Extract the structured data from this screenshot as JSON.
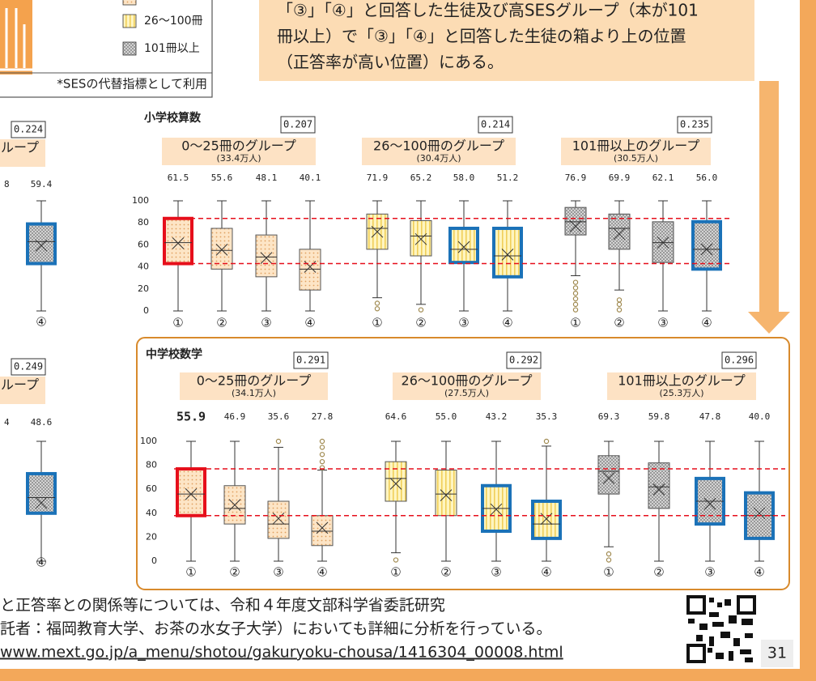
{
  "legend": {
    "items": [
      "26〜100冊",
      "101冊以上"
    ],
    "note": "*SESの代替指標として利用"
  },
  "callout": [
    "「③」「④」と回答した生徒及び高SESグループ（本が101",
    "冊以上）で「③」「④」と回答した生徒の箱より上の位置",
    "（正答率が高い位置）にある。"
  ],
  "left_fragments": [
    {
      "coef": "0.224",
      "title": "ループ",
      "labels": [
        "8",
        "59.4"
      ],
      "box": {
        "label": "④",
        "min": 0,
        "q1": 43,
        "median": 63,
        "q3": 79,
        "max": 100,
        "mean": 59.4,
        "border": "#1b72b8"
      }
    },
    {
      "coef": "0.249",
      "title": "ループ",
      "labels": [
        "4",
        "48.6"
      ],
      "box": {
        "label": "④",
        "min": 0,
        "q1": 40,
        "median": 53,
        "q3": 73,
        "max": 100,
        "mean": 48.6,
        "border": "#1b72b8"
      }
    }
  ],
  "charts": [
    {
      "title": "小学校算数",
      "ylim": [
        0,
        100
      ],
      "yticks": [
        0,
        20,
        40,
        60,
        80,
        100
      ],
      "reference_lines": [
        84,
        43
      ],
      "groups": [
        {
          "title": "0〜25冊のグループ",
          "count": "(33.4万人)",
          "coef": "0.207",
          "values": [
            61.5,
            55.6,
            48.1,
            40.1
          ],
          "value_labels": [
            "61.5",
            "55.6",
            "48.1",
            "40.1"
          ],
          "boxes": [
            {
              "label": "①",
              "min": 0,
              "q1": 43,
              "median": 62,
              "q3": 84,
              "max": 100,
              "outliers": [],
              "border": "#e60f1b"
            },
            {
              "label": "②",
              "min": 0,
              "q1": 38,
              "median": 55,
              "q3": 75,
              "max": 100,
              "outliers": []
            },
            {
              "label": "③",
              "min": 0,
              "q1": 31,
              "median": 49,
              "q3": 69,
              "max": 100,
              "outliers": []
            },
            {
              "label": "④",
              "min": 0,
              "q1": 19,
              "median": 38,
              "q3": 56,
              "max": 100,
              "outliers": []
            }
          ]
        },
        {
          "title": "26〜100冊のグループ",
          "count": "(30.4万人)",
          "coef": "0.214",
          "values": [
            71.9,
            65.2,
            58.0,
            51.2
          ],
          "value_labels": [
            "71.9",
            "65.2",
            "58.0",
            "51.2"
          ],
          "boxes": [
            {
              "label": "①",
              "min": 12,
              "q1": 56,
              "median": 75,
              "q3": 88,
              "max": 100,
              "outliers": [
                7,
                2
              ]
            },
            {
              "label": "②",
              "min": 6,
              "q1": 50,
              "median": 68,
              "q3": 82,
              "max": 100,
              "outliers": [
                1
              ]
            },
            {
              "label": "③",
              "min": 0,
              "q1": 44,
              "median": 56,
              "q3": 75,
              "max": 100,
              "outliers": [],
              "border": "#1b72b8"
            },
            {
              "label": "④",
              "min": 0,
              "q1": 31,
              "median": 50,
              "q3": 75,
              "max": 100,
              "outliers": [],
              "border": "#1b72b8"
            }
          ]
        },
        {
          "title": "101冊以上のグループ",
          "count": "(30.5万人)",
          "coef": "0.235",
          "values": [
            76.9,
            69.9,
            62.1,
            56.0
          ],
          "value_labels": [
            "76.9",
            "69.9",
            "62.1",
            "56.0"
          ],
          "boxes": [
            {
              "label": "①",
              "min": 32,
              "q1": 69,
              "median": 81,
              "q3": 94,
              "max": 100,
              "outliers": [
                26,
                21,
                16,
                11,
                6,
                1
              ]
            },
            {
              "label": "②",
              "min": 19,
              "q1": 56,
              "median": 75,
              "q3": 88,
              "max": 100,
              "outliers": [
                10,
                6,
                1
              ]
            },
            {
              "label": "③",
              "min": 0,
              "q1": 44,
              "median": 62,
              "q3": 81,
              "max": 100,
              "outliers": []
            },
            {
              "label": "④",
              "min": 0,
              "q1": 38,
              "median": 56,
              "q3": 81,
              "max": 100,
              "outliers": [],
              "border": "#1b72b8"
            }
          ]
        }
      ]
    },
    {
      "title": "中学校数学",
      "ylim": [
        0,
        100
      ],
      "yticks": [
        0,
        20,
        40,
        60,
        80,
        100
      ],
      "reference_lines": [
        77,
        38
      ],
      "groups": [
        {
          "title": "0〜25冊のグループ",
          "count": "(34.1万人)",
          "coef": "0.291",
          "values": [
            55.9,
            46.9,
            35.6,
            27.8
          ],
          "value_labels": [
            "55.9",
            "46.9",
            "35.6",
            "27.8"
          ],
          "boxes": [
            {
              "label": "①",
              "min": 0,
              "q1": 38,
              "median": 56,
              "q3": 77,
              "max": 100,
              "outliers": [],
              "border": "#e60f1b"
            },
            {
              "label": "②",
              "min": 0,
              "q1": 31,
              "median": 44,
              "q3": 63,
              "max": 100,
              "outliers": []
            },
            {
              "label": "③",
              "min": 0,
              "q1": 19,
              "median": 31,
              "q3": 50,
              "max": 95,
              "outliers": [
                100
              ]
            },
            {
              "label": "④",
              "min": 0,
              "q1": 13,
              "median": 25,
              "q3": 38,
              "max": 76,
              "outliers": [
                100,
                95,
                89,
                83,
                78
              ]
            }
          ]
        },
        {
          "title": "26〜100冊のグループ",
          "count": "(27.5万人)",
          "coef": "0.292",
          "values": [
            64.6,
            55.0,
            43.2,
            35.3
          ],
          "value_labels": [
            "64.6",
            "55.0",
            "43.2",
            "35.3"
          ],
          "boxes": [
            {
              "label": "①",
              "min": 7,
              "q1": 50,
              "median": 69,
              "q3": 83,
              "max": 100,
              "outliers": [
                1
              ]
            },
            {
              "label": "②",
              "min": 0,
              "q1": 38,
              "median": 56,
              "q3": 76,
              "max": 100,
              "outliers": []
            },
            {
              "label": "③",
              "min": 0,
              "q1": 25,
              "median": 44,
              "q3": 63,
              "max": 100,
              "outliers": [],
              "border": "#1b72b8"
            },
            {
              "label": "④",
              "min": 0,
              "q1": 19,
              "median": 31,
              "q3": 50,
              "max": 96,
              "outliers": [
                100
              ],
              "border": "#1b72b8"
            }
          ]
        },
        {
          "title": "101冊以上のグループ",
          "count": "(25.3万人)",
          "coef": "0.296",
          "values": [
            69.3,
            59.8,
            47.8,
            40.0
          ],
          "value_labels": [
            "69.3",
            "59.8",
            "47.8",
            "40.0"
          ],
          "boxes": [
            {
              "label": "①",
              "min": 12,
              "q1": 56,
              "median": 75,
              "q3": 88,
              "max": 100,
              "outliers": [
                6,
                1
              ]
            },
            {
              "label": "②",
              "min": 0,
              "q1": 44,
              "median": 62,
              "q3": 82,
              "max": 100,
              "outliers": []
            },
            {
              "label": "③",
              "min": 0,
              "q1": 31,
              "median": 50,
              "q3": 69,
              "max": 100,
              "outliers": [],
              "border": "#1b72b8"
            },
            {
              "label": "④",
              "min": 0,
              "q1": 19,
              "median": 38,
              "q3": 57,
              "max": 100,
              "outliers": [],
              "border": "#1b72b8"
            }
          ]
        }
      ]
    }
  ],
  "footer": {
    "lines": [
      "と正答率との関係等については、令和４年度文部科学省委託研究",
      "託者：福岡教育大学、お茶の水女子大学）においても詳細に分析を行っている。"
    ],
    "url": "www.mext.go.jp/a_menu/shotou/gakuryoku-chousa/1416304_00008.html",
    "page": "31"
  }
}
